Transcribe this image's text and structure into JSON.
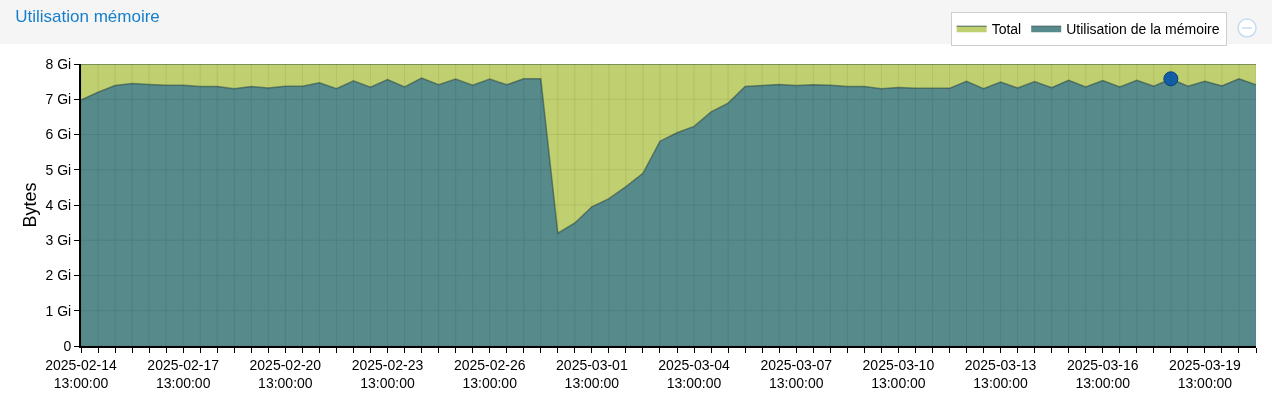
{
  "chart_data": {
    "type": "area",
    "title": "Utilisation mémoire",
    "ylabel": "Bytes",
    "x": [
      "2025-02-14T13:00",
      "2025-02-15T01:00",
      "2025-02-15T13:00",
      "2025-02-16T01:00",
      "2025-02-16T13:00",
      "2025-02-17T01:00",
      "2025-02-17T13:00",
      "2025-02-18T01:00",
      "2025-02-18T13:00",
      "2025-02-19T01:00",
      "2025-02-19T13:00",
      "2025-02-20T01:00",
      "2025-02-20T13:00",
      "2025-02-21T01:00",
      "2025-02-21T13:00",
      "2025-02-22T01:00",
      "2025-02-22T13:00",
      "2025-02-23T01:00",
      "2025-02-23T13:00",
      "2025-02-24T01:00",
      "2025-02-24T13:00",
      "2025-02-25T01:00",
      "2025-02-25T13:00",
      "2025-02-26T01:00",
      "2025-02-26T13:00",
      "2025-02-27T01:00",
      "2025-02-27T13:00",
      "2025-02-28T01:00",
      "2025-02-28T13:00",
      "2025-03-01T01:00",
      "2025-03-01T13:00",
      "2025-03-02T01:00",
      "2025-03-02T13:00",
      "2025-03-03T01:00",
      "2025-03-03T13:00",
      "2025-03-04T01:00",
      "2025-03-04T13:00",
      "2025-03-05T01:00",
      "2025-03-05T13:00",
      "2025-03-06T01:00",
      "2025-03-06T13:00",
      "2025-03-07T01:00",
      "2025-03-07T13:00",
      "2025-03-08T01:00",
      "2025-03-08T13:00",
      "2025-03-09T01:00",
      "2025-03-09T13:00",
      "2025-03-10T01:00",
      "2025-03-10T13:00",
      "2025-03-11T01:00",
      "2025-03-11T13:00",
      "2025-03-12T01:00",
      "2025-03-12T13:00",
      "2025-03-13T01:00",
      "2025-03-13T13:00",
      "2025-03-14T01:00",
      "2025-03-14T13:00",
      "2025-03-15T01:00",
      "2025-03-15T13:00",
      "2025-03-16T01:00",
      "2025-03-16T13:00",
      "2025-03-17T01:00",
      "2025-03-17T13:00",
      "2025-03-18T01:00",
      "2025-03-18T13:00",
      "2025-03-19T01:00",
      "2025-03-19T13:00",
      "2025-03-20T01:00",
      "2025-03-20T13:00",
      "2025-03-21T01:00"
    ],
    "series": [
      {
        "name": "Total",
        "color": "#c0cf6f",
        "values": [
          8,
          8,
          8,
          8,
          8,
          8,
          8,
          8,
          8,
          8,
          8,
          8,
          8,
          8,
          8,
          8,
          8,
          8,
          8,
          8,
          8,
          8,
          8,
          8,
          8,
          8,
          8,
          8,
          8,
          8,
          8,
          8,
          8,
          8,
          8,
          8,
          8,
          8,
          8,
          8,
          8,
          8,
          8,
          8,
          8,
          8,
          8,
          8,
          8,
          8,
          8,
          8,
          8,
          8,
          8,
          8,
          8,
          8,
          8,
          8,
          8,
          8,
          8,
          8,
          8,
          8,
          8,
          8,
          8,
          8
        ]
      },
      {
        "name": "Utilisation de la mémoire",
        "color": "#568a8b",
        "values": [
          6.98,
          7.2,
          7.39,
          7.45,
          7.42,
          7.4,
          7.4,
          7.36,
          7.36,
          7.3,
          7.36,
          7.32,
          7.37,
          7.37,
          7.47,
          7.3,
          7.52,
          7.34,
          7.56,
          7.35,
          7.6,
          7.41,
          7.57,
          7.4,
          7.57,
          7.41,
          7.58,
          7.58,
          3.2,
          3.49,
          3.95,
          4.18,
          4.52,
          4.9,
          5.81,
          6.05,
          6.23,
          6.64,
          6.89,
          7.36,
          7.39,
          7.42,
          7.39,
          7.41,
          7.4,
          7.36,
          7.36,
          7.3,
          7.33,
          7.31,
          7.31,
          7.31,
          7.51,
          7.3,
          7.49,
          7.32,
          7.5,
          7.33,
          7.54,
          7.35,
          7.53,
          7.35,
          7.54,
          7.37,
          7.58,
          7.37,
          7.51,
          7.38,
          7.58,
          7.41
        ]
      },
      {
        "type": "scatter",
        "color": "#115fa6",
        "marker": "circle",
        "x": [
          "2025-03-18T13:00"
        ],
        "values": [
          7.58
        ]
      }
    ],
    "xlim": [
      "2025-02-14T13:00",
      "2025-03-21T01:00"
    ],
    "xticks": [
      {
        "value": "2025-02-14T13:00",
        "label": "2025-02-14\n13:00:00"
      },
      {
        "value": "2025-02-15T01:00",
        "label": null
      },
      {
        "value": "2025-02-15T13:00",
        "label": null
      },
      {
        "value": "2025-02-16T01:00",
        "label": null
      },
      {
        "value": "2025-02-16T13:00",
        "label": null
      },
      {
        "value": "2025-02-17T01:00",
        "label": null
      },
      {
        "value": "2025-02-17T13:00",
        "label": "2025-02-17\n13:00:00"
      },
      {
        "value": "2025-02-18T01:00",
        "label": null
      },
      {
        "value": "2025-02-18T13:00",
        "label": null
      },
      {
        "value": "2025-02-19T01:00",
        "label": null
      },
      {
        "value": "2025-02-19T13:00",
        "label": null
      },
      {
        "value": "2025-02-20T01:00",
        "label": null
      },
      {
        "value": "2025-02-20T13:00",
        "label": "2025-02-20\n13:00:00"
      },
      {
        "value": "2025-02-21T01:00",
        "label": null
      },
      {
        "value": "2025-02-21T13:00",
        "label": null
      },
      {
        "value": "2025-02-22T01:00",
        "label": null
      },
      {
        "value": "2025-02-22T13:00",
        "label": null
      },
      {
        "value": "2025-02-23T01:00",
        "label": null
      },
      {
        "value": "2025-02-23T13:00",
        "label": "2025-02-23\n13:00:00"
      },
      {
        "value": "2025-02-24T01:00",
        "label": null
      },
      {
        "value": "2025-02-24T13:00",
        "label": null
      },
      {
        "value": "2025-02-25T01:00",
        "label": null
      },
      {
        "value": "2025-02-25T13:00",
        "label": null
      },
      {
        "value": "2025-02-26T01:00",
        "label": null
      },
      {
        "value": "2025-02-26T13:00",
        "label": "2025-02-26\n13:00:00"
      },
      {
        "value": "2025-02-27T01:00",
        "label": null
      },
      {
        "value": "2025-02-27T13:00",
        "label": null
      },
      {
        "value": "2025-02-28T01:00",
        "label": null
      },
      {
        "value": "2025-02-28T13:00",
        "label": null
      },
      {
        "value": "2025-03-01T01:00",
        "label": null
      },
      {
        "value": "2025-03-01T13:00",
        "label": "2025-03-01\n13:00:00"
      },
      {
        "value": "2025-03-02T01:00",
        "label": null
      },
      {
        "value": "2025-03-02T13:00",
        "label": null
      },
      {
        "value": "2025-03-03T01:00",
        "label": null
      },
      {
        "value": "2025-03-03T13:00",
        "label": null
      },
      {
        "value": "2025-03-04T01:00",
        "label": null
      },
      {
        "value": "2025-03-04T13:00",
        "label": "2025-03-04\n13:00:00"
      },
      {
        "value": "2025-03-05T01:00",
        "label": null
      },
      {
        "value": "2025-03-05T13:00",
        "label": null
      },
      {
        "value": "2025-03-06T01:00",
        "label": null
      },
      {
        "value": "2025-03-06T13:00",
        "label": null
      },
      {
        "value": "2025-03-07T01:00",
        "label": null
      },
      {
        "value": "2025-03-07T13:00",
        "label": "2025-03-07\n13:00:00"
      },
      {
        "value": "2025-03-08T01:00",
        "label": null
      },
      {
        "value": "2025-03-08T13:00",
        "label": null
      },
      {
        "value": "2025-03-09T01:00",
        "label": null
      },
      {
        "value": "2025-03-09T13:00",
        "label": null
      },
      {
        "value": "2025-03-10T01:00",
        "label": null
      },
      {
        "value": "2025-03-10T13:00",
        "label": "2025-03-10\n13:00:00"
      },
      {
        "value": "2025-03-11T01:00",
        "label": null
      },
      {
        "value": "2025-03-11T13:00",
        "label": null
      },
      {
        "value": "2025-03-12T01:00",
        "label": null
      },
      {
        "value": "2025-03-12T13:00",
        "label": null
      },
      {
        "value": "2025-03-13T01:00",
        "label": null
      },
      {
        "value": "2025-03-13T13:00",
        "label": "2025-03-13\n13:00:00"
      },
      {
        "value": "2025-03-14T01:00",
        "label": null
      },
      {
        "value": "2025-03-14T13:00",
        "label": null
      },
      {
        "value": "2025-03-15T01:00",
        "label": null
      },
      {
        "value": "2025-03-15T13:00",
        "label": null
      },
      {
        "value": "2025-03-16T01:00",
        "label": null
      },
      {
        "value": "2025-03-16T13:00",
        "label": "2025-03-16\n13:00:00"
      },
      {
        "value": "2025-03-17T01:00",
        "label": null
      },
      {
        "value": "2025-03-17T13:00",
        "label": null
      },
      {
        "value": "2025-03-18T01:00",
        "label": null
      },
      {
        "value": "2025-03-18T13:00",
        "label": null
      },
      {
        "value": "2025-03-19T01:00",
        "label": null
      },
      {
        "value": "2025-03-19T13:00",
        "label": "2025-03-19\n13:00:00"
      },
      {
        "value": "2025-03-20T01:00",
        "label": null
      },
      {
        "value": "2025-03-20T13:00",
        "label": null
      },
      {
        "value": "2025-03-21T01:00",
        "label": null
      }
    ],
    "ylim": [
      0,
      8
    ],
    "yticks": [
      0,
      {
        "value": 1,
        "label": "1 Gi"
      },
      {
        "value": 2,
        "label": "2 Gi"
      },
      {
        "value": 3,
        "label": "3 Gi"
      },
      {
        "value": 4,
        "label": "4 Gi"
      },
      {
        "value": 5,
        "label": "5 Gi"
      },
      {
        "value": 6,
        "label": "6 Gi"
      },
      {
        "value": 7,
        "label": "7 Gi"
      },
      {
        "value": 8,
        "label": "8 Gi"
      }
    ],
    "grid": true,
    "legend": "top right",
    "marker": "none"
  }
}
